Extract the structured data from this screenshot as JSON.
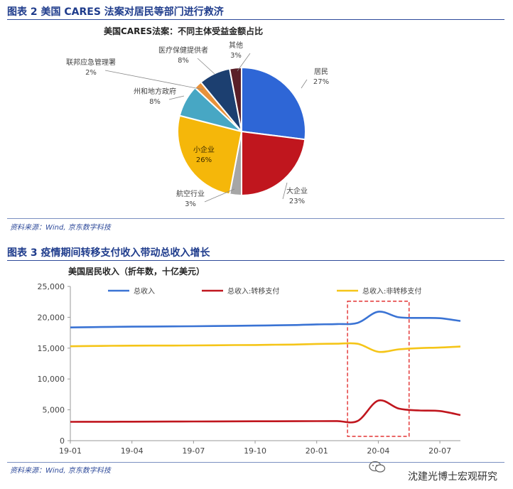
{
  "figure2": {
    "caption": "图表 2 美国 CARES 法案对居民等部门进行救济",
    "source": "资料来源：Wind, 京东数字科技"
  },
  "figure3": {
    "caption": "图表 3 疫情期间转移支付收入带动总收入增长",
    "source": "资料来源：Wind, 京东数字科技"
  },
  "watermark": "沈建光博士宏观研究",
  "chart_data": [
    {
      "type": "pie",
      "title": "美国CARES法案：不同主体受益金额占比",
      "slices": [
        {
          "label": "居民",
          "value": 27,
          "pct": "27%",
          "color": "#2e66d6"
        },
        {
          "label": "大企业",
          "value": 23,
          "pct": "23%",
          "color": "#c0161e"
        },
        {
          "label": "航空行业",
          "value": 3,
          "pct": "3%",
          "color": "#a6a6a6"
        },
        {
          "label": "小企业",
          "value": 26,
          "pct": "26%",
          "color": "#f5b70a"
        },
        {
          "label": "州和地方政府",
          "value": 8,
          "pct": "8%",
          "color": "#47a7c4"
        },
        {
          "label": "联邦应急管理署",
          "value": 2,
          "pct": "2%",
          "color": "#e8923a"
        },
        {
          "label": "医疗保健提供者",
          "value": 8,
          "pct": "8%",
          "color": "#1c3f70"
        },
        {
          "label": "其他",
          "value": 3,
          "pct": "3%",
          "color": "#5a1f28"
        }
      ]
    },
    {
      "type": "line",
      "title": "美国居民收入（折年数，十亿美元）",
      "ylim": [
        0,
        25000
      ],
      "yticks": [
        "0",
        "5,000",
        "10,000",
        "15,000",
        "20,000",
        "25,000"
      ],
      "ytick_values": [
        0,
        5000,
        10000,
        15000,
        20000,
        25000
      ],
      "xticks": [
        "19-01",
        "19-04",
        "19-07",
        "19-10",
        "20-01",
        "20-04",
        "20-07"
      ],
      "xlim": [
        0,
        19
      ],
      "x": [
        0,
        1,
        2,
        3,
        4,
        5,
        6,
        7,
        8,
        9,
        10,
        11,
        12,
        13,
        14,
        15,
        16,
        17,
        18,
        19
      ],
      "highlight_range": [
        13.5,
        16.5
      ],
      "series": [
        {
          "name": "总收入",
          "color": "#3a73d4",
          "values": [
            18350,
            18400,
            18450,
            18480,
            18500,
            18520,
            18550,
            18580,
            18620,
            18650,
            18700,
            18750,
            18850,
            18900,
            19100,
            20900,
            20000,
            19900,
            19850,
            19400
          ]
        },
        {
          "name": "总收入:转移支付",
          "color": "#c0161e",
          "values": [
            3050,
            3060,
            3070,
            3080,
            3090,
            3100,
            3110,
            3120,
            3130,
            3140,
            3150,
            3160,
            3170,
            3180,
            3200,
            6500,
            5200,
            4900,
            4800,
            4150
          ]
        },
        {
          "name": "总收入:非转移支付",
          "color": "#f5c518",
          "values": [
            15300,
            15340,
            15380,
            15400,
            15410,
            15420,
            15440,
            15460,
            15490,
            15510,
            15550,
            15590,
            15680,
            15720,
            15700,
            14400,
            14800,
            15000,
            15100,
            15250
          ]
        }
      ]
    }
  ]
}
